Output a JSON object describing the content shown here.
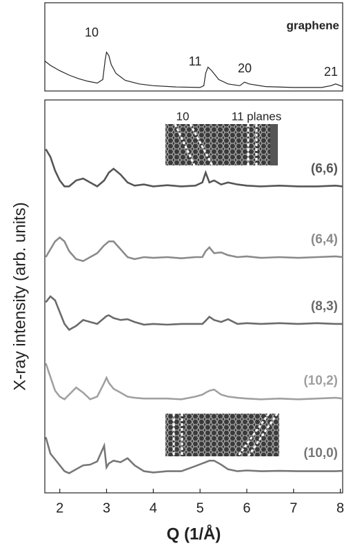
{
  "chart_data": [
    {
      "type": "line",
      "xlim": [
        1.68,
        8.05
      ],
      "ylim": [
        0,
        10
      ],
      "annotations": [
        "10",
        "11",
        "20",
        "21"
      ],
      "x": [
        1.68,
        1.8,
        2.0,
        2.2,
        2.4,
        2.6,
        2.8,
        2.92,
        2.97,
        3.0,
        3.05,
        3.1,
        3.2,
        3.4,
        3.7,
        4.0,
        4.5,
        5.0,
        5.08,
        5.12,
        5.17,
        5.25,
        5.4,
        5.6,
        5.85,
        5.95,
        6.05,
        6.4,
        7.0,
        7.6,
        7.8,
        7.9,
        8.0,
        8.05
      ],
      "series": [
        {
          "name": "graphene",
          "color": "#222222",
          "values": [
            3.4,
            2.9,
            2.3,
            1.8,
            1.4,
            1.1,
            0.9,
            1.3,
            3.5,
            4.4,
            4.0,
            3.0,
            2.0,
            1.2,
            0.8,
            0.6,
            0.45,
            0.4,
            0.6,
            2.0,
            2.7,
            2.3,
            1.3,
            0.8,
            0.6,
            1.0,
            0.8,
            0.5,
            0.4,
            0.4,
            0.6,
            0.8,
            0.6,
            0.5
          ]
        }
      ]
    },
    {
      "type": "line",
      "xlabel": "Q (1/Å)",
      "ylabel": "X-ray intensity (arb. units)",
      "xlim": [
        1.68,
        8.05
      ],
      "ylim": [
        0,
        10
      ],
      "xticks": [
        2,
        3,
        4,
        5,
        6,
        7,
        8
      ],
      "annotations": [
        "10",
        "11 planes"
      ],
      "x": [
        1.7,
        1.8,
        1.9,
        2.0,
        2.1,
        2.2,
        2.35,
        2.5,
        2.65,
        2.8,
        2.95,
        3.0,
        3.05,
        3.15,
        3.3,
        3.45,
        3.6,
        3.8,
        4.0,
        4.3,
        4.6,
        4.9,
        5.05,
        5.12,
        5.2,
        5.3,
        5.45,
        5.6,
        5.8,
        6.0,
        6.3,
        6.7,
        7.1,
        7.5,
        7.9,
        8.05
      ],
      "series": [
        {
          "name": "(6,6)",
          "color": "#555555",
          "values": [
            8.75,
            8.55,
            8.2,
            7.95,
            7.8,
            7.8,
            7.95,
            8.0,
            7.9,
            7.8,
            7.95,
            8.05,
            8.15,
            8.25,
            8.1,
            7.9,
            7.82,
            7.85,
            7.8,
            7.83,
            7.8,
            7.82,
            7.9,
            8.15,
            7.9,
            7.95,
            7.85,
            7.9,
            7.85,
            7.82,
            7.8,
            7.82,
            7.8,
            7.8,
            7.82,
            7.8
          ]
        },
        {
          "name": "(6,4)",
          "color": "#8a8a8a",
          "values": [
            6.0,
            6.2,
            6.4,
            6.5,
            6.4,
            6.15,
            5.95,
            5.9,
            6.0,
            6.1,
            6.3,
            6.35,
            6.4,
            6.4,
            6.2,
            6.0,
            5.95,
            6.0,
            5.98,
            6.0,
            5.97,
            6.0,
            6.0,
            6.15,
            6.25,
            6.1,
            6.12,
            6.05,
            6.0,
            6.02,
            5.98,
            6.0,
            5.98,
            6.0,
            6.02,
            6.0
          ]
        },
        {
          "name": "(8,3)",
          "color": "#6a6a6a",
          "values": [
            4.85,
            5.0,
            4.9,
            4.6,
            4.3,
            4.15,
            4.25,
            4.4,
            4.35,
            4.3,
            4.45,
            4.5,
            4.52,
            4.45,
            4.4,
            4.42,
            4.35,
            4.28,
            4.3,
            4.28,
            4.3,
            4.3,
            4.3,
            4.38,
            4.48,
            4.4,
            4.35,
            4.42,
            4.3,
            4.32,
            4.3,
            4.32,
            4.3,
            4.32,
            4.3,
            4.3
          ]
        },
        {
          "name": "(10,2)",
          "color": "#a0a0a0",
          "values": [
            3.3,
            2.95,
            2.6,
            2.45,
            2.38,
            2.5,
            2.68,
            2.55,
            2.38,
            2.45,
            2.8,
            2.93,
            2.8,
            2.65,
            2.55,
            2.45,
            2.42,
            2.4,
            2.4,
            2.4,
            2.38,
            2.45,
            2.5,
            2.55,
            2.6,
            2.63,
            2.5,
            2.45,
            2.42,
            2.4,
            2.38,
            2.4,
            2.38,
            2.4,
            2.42,
            2.4
          ]
        },
        {
          "name": "(10,0)",
          "color": "#777777",
          "values": [
            1.42,
            1.0,
            0.85,
            0.7,
            0.55,
            0.5,
            0.6,
            0.7,
            0.72,
            0.8,
            1.2,
            0.65,
            0.75,
            0.82,
            0.78,
            0.88,
            0.7,
            0.55,
            0.52,
            0.55,
            0.55,
            0.68,
            0.75,
            0.78,
            0.82,
            0.82,
            0.72,
            0.6,
            0.55,
            0.57,
            0.55,
            0.56,
            0.55,
            0.55,
            0.55,
            0.56
          ]
        }
      ]
    }
  ]
}
